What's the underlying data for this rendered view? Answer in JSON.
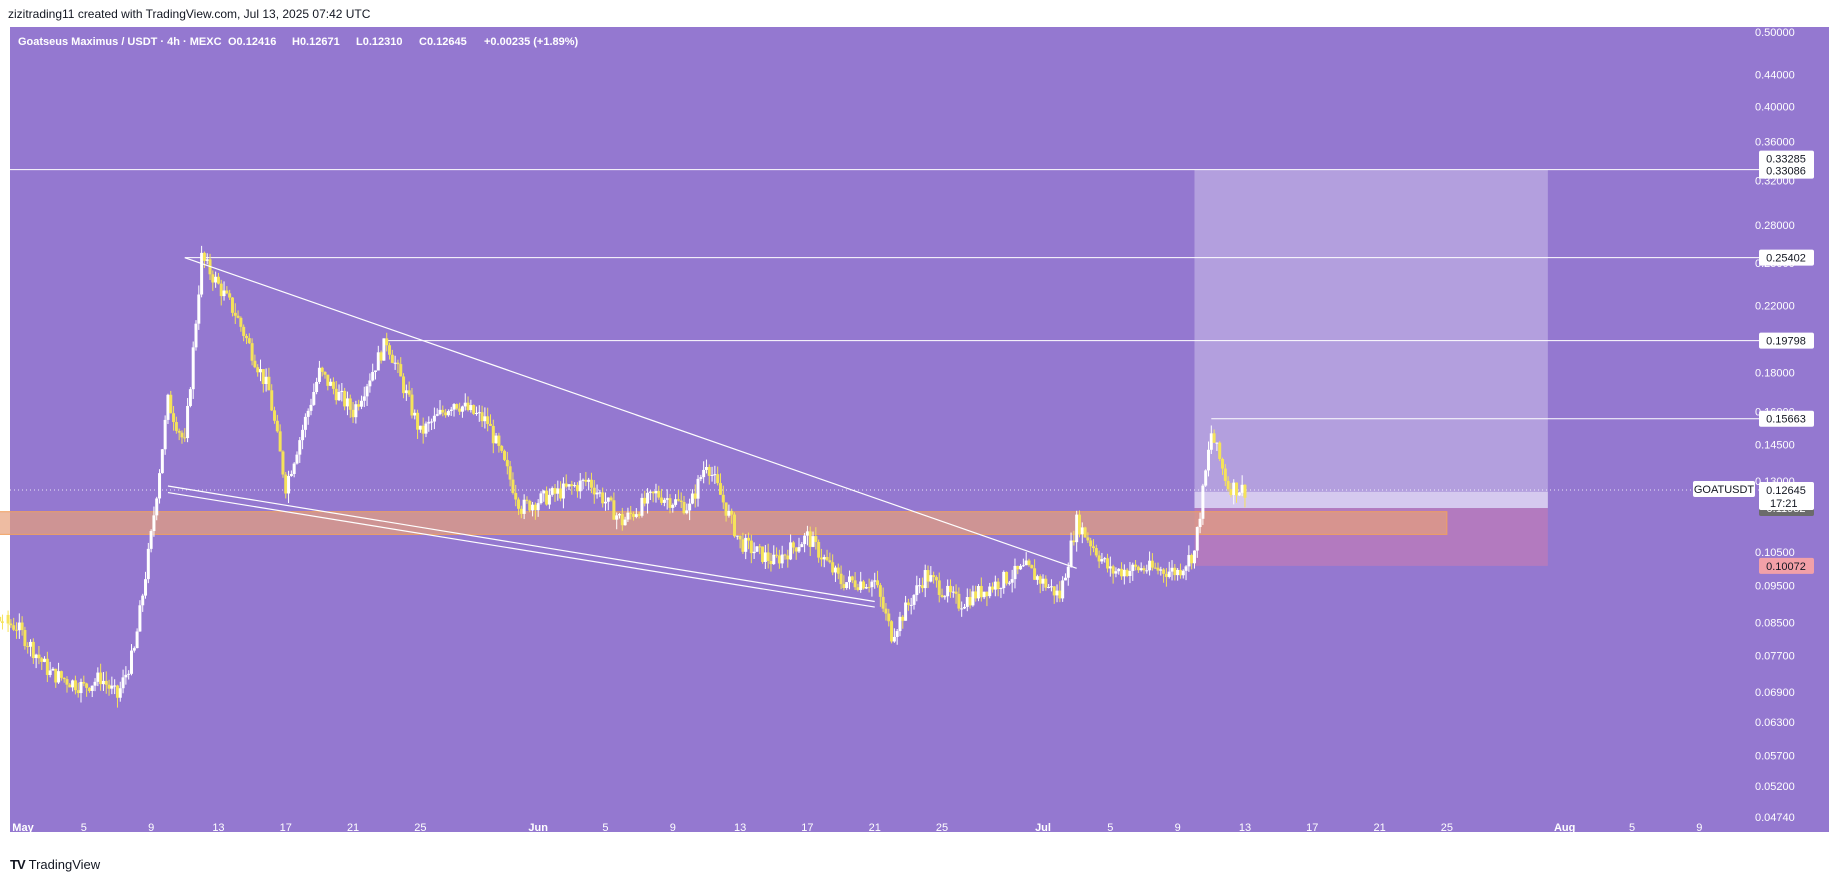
{
  "header": {
    "credit": "zizitrading11 created with TradingView.com, Jul 13, 2025 07:42 UTC"
  },
  "footer": {
    "brand": "TradingView",
    "logo_icon": "tradingview-logo-icon"
  },
  "colors": {
    "background": "#9478d0",
    "candle_up": "#ffffff",
    "candle_down": "#f5e35a",
    "level_line": "#ffffff",
    "target_zone": "#b9a6e0",
    "stop_zone": "#c07ab8",
    "support_zone": "#e7a07a",
    "label_dark": "#6b6b6b",
    "label_red": "#f2a0a8"
  },
  "chart_data": {
    "type": "candlestick",
    "symbol_line": {
      "name": "Goatseus Maximus / USDT · 4h · MEXC",
      "open": "O0.12416",
      "high": "H0.12671",
      "low": "L0.12310",
      "close": "C0.12645",
      "change": "+0.00235 (+1.89%)"
    },
    "scale": "log",
    "ylim": [
      0.0474,
      0.5
    ],
    "x_labels": [
      "May",
      "5",
      "9",
      "13",
      "17",
      "21",
      "25",
      "Jun",
      "5",
      "9",
      "13",
      "17",
      "21",
      "25",
      "Jul",
      "5",
      "9",
      "13",
      "17",
      "21",
      "25",
      "Aug",
      "5",
      "9"
    ],
    "y_ticks": [
      "0.50000",
      "0.44000",
      "0.40000",
      "0.36000",
      "0.32000",
      "0.28000",
      "0.25000",
      "0.22000",
      "0.18000",
      "0.16000",
      "0.14500",
      "0.13000",
      "0.10500",
      "0.09500",
      "0.08500",
      "0.07700",
      "0.06900",
      "0.06300",
      "0.05700",
      "0.05200",
      "0.04740"
    ],
    "y_tick_values": [
      0.5,
      0.44,
      0.4,
      0.36,
      0.32,
      0.28,
      0.25,
      0.22,
      0.18,
      0.16,
      0.145,
      0.13,
      0.105,
      0.095,
      0.085,
      0.077,
      0.069,
      0.063,
      0.057,
      0.052,
      0.0474
    ],
    "level_labels": [
      {
        "value": 0.33285,
        "text": "0.33285",
        "style": "light"
      },
      {
        "value": 0.33086,
        "text": "0.33086",
        "style": "light"
      },
      {
        "value": 0.25402,
        "text": "0.25402",
        "style": "light"
      },
      {
        "value": 0.19798,
        "text": "0.19798",
        "style": "light"
      },
      {
        "value": 0.15663,
        "text": "0.15663",
        "style": "light"
      },
      {
        "value": 0.11982,
        "text": "0.11982",
        "style": "dark"
      },
      {
        "value": 0.10072,
        "text": "0.10072",
        "style": "red"
      }
    ],
    "last_price": {
      "value": 0.12645,
      "text": "0.12645",
      "countdown": "17:21",
      "ticker": "GOATUSDT"
    },
    "horizontal_levels": [
      0.33086,
      0.25402,
      0.19798,
      0.15663
    ],
    "zones": {
      "support": {
        "low": 0.1107,
        "high": 0.1185,
        "from_date": "2025-04-27",
        "to_date": "2025-07-25"
      },
      "target": {
        "low": 0.1258,
        "high": 0.33086,
        "from_date": "2025-07-10",
        "to_date": "2025-07-31"
      },
      "entry": {
        "low": 0.1198,
        "high": 0.1258,
        "from_date": "2025-07-10",
        "to_date": "2025-07-31"
      },
      "stop": {
        "low": 0.10072,
        "high": 0.1198,
        "from_date": "2025-07-10",
        "to_date": "2025-07-31"
      }
    },
    "trendlines": [
      {
        "name": "falling-wedge-upper",
        "from": [
          "2025-05-11",
          0.254
        ],
        "to": [
          "2025-07-03",
          0.1
        ]
      },
      {
        "name": "falling-wedge-lower",
        "from": [
          "2025-05-10",
          0.128
        ],
        "to": [
          "2025-06-21",
          0.0905
        ]
      },
      {
        "name": "falling-wedge-lower-2",
        "from": [
          "2025-05-10",
          0.1255
        ],
        "to": [
          "2025-06-21",
          0.089
        ]
      }
    ],
    "price_path": [
      {
        "date": "2025-04-27",
        "price": 0.084
      },
      {
        "date": "2025-04-29",
        "price": 0.087
      },
      {
        "date": "2025-05-01",
        "price": 0.084
      },
      {
        "date": "2025-05-03",
        "price": 0.073
      },
      {
        "date": "2025-05-05",
        "price": 0.07
      },
      {
        "date": "2025-05-06",
        "price": 0.072
      },
      {
        "date": "2025-05-07",
        "price": 0.068
      },
      {
        "date": "2025-05-08",
        "price": 0.078
      },
      {
        "date": "2025-05-09",
        "price": 0.11
      },
      {
        "date": "2025-05-10",
        "price": 0.165
      },
      {
        "date": "2025-05-11",
        "price": 0.145
      },
      {
        "date": "2025-05-12",
        "price": 0.254
      },
      {
        "date": "2025-05-14",
        "price": 0.215
      },
      {
        "date": "2025-05-16",
        "price": 0.17
      },
      {
        "date": "2025-05-17",
        "price": 0.128
      },
      {
        "date": "2025-05-19",
        "price": 0.18
      },
      {
        "date": "2025-05-21",
        "price": 0.16
      },
      {
        "date": "2025-05-23",
        "price": 0.198
      },
      {
        "date": "2025-05-25",
        "price": 0.15
      },
      {
        "date": "2025-05-27",
        "price": 0.165
      },
      {
        "date": "2025-05-29",
        "price": 0.155
      },
      {
        "date": "2025-05-31",
        "price": 0.12
      },
      {
        "date": "2025-06-02",
        "price": 0.125
      },
      {
        "date": "2025-06-04",
        "price": 0.13
      },
      {
        "date": "2025-06-06",
        "price": 0.115
      },
      {
        "date": "2025-06-08",
        "price": 0.125
      },
      {
        "date": "2025-06-10",
        "price": 0.12
      },
      {
        "date": "2025-06-11",
        "price": 0.138
      },
      {
        "date": "2025-06-13",
        "price": 0.108
      },
      {
        "date": "2025-06-15",
        "price": 0.102
      },
      {
        "date": "2025-06-17",
        "price": 0.11
      },
      {
        "date": "2025-06-19",
        "price": 0.096
      },
      {
        "date": "2025-06-21",
        "price": 0.096
      },
      {
        "date": "2025-06-22",
        "price": 0.082
      },
      {
        "date": "2025-06-24",
        "price": 0.098
      },
      {
        "date": "2025-06-26",
        "price": 0.09
      },
      {
        "date": "2025-06-28",
        "price": 0.095
      },
      {
        "date": "2025-06-30",
        "price": 0.1
      },
      {
        "date": "2025-07-02",
        "price": 0.092
      },
      {
        "date": "2025-07-03",
        "price": 0.115
      },
      {
        "date": "2025-07-05",
        "price": 0.099
      },
      {
        "date": "2025-07-07",
        "price": 0.1
      },
      {
        "date": "2025-07-09",
        "price": 0.099
      },
      {
        "date": "2025-07-10",
        "price": 0.105
      },
      {
        "date": "2025-07-11",
        "price": 0.15
      },
      {
        "date": "2025-07-12",
        "price": 0.128
      },
      {
        "date": "2025-07-13",
        "price": 0.12645
      }
    ]
  }
}
